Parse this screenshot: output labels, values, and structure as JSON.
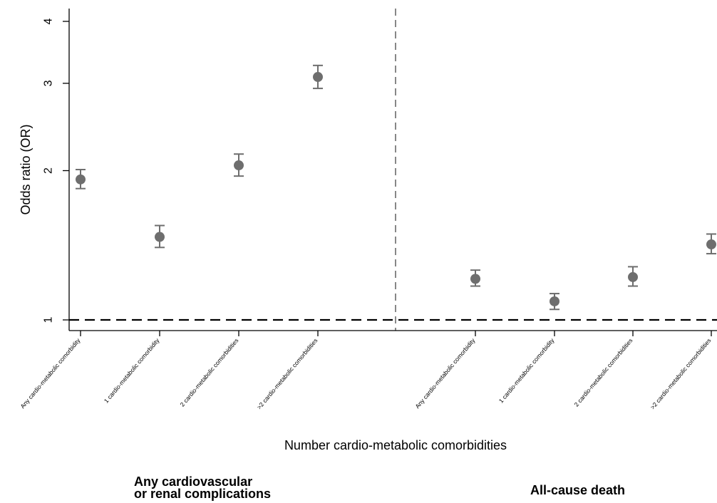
{
  "chart_data": {
    "type": "scatter",
    "subtype": "point-estimate-with-error-bars",
    "ylabel": "Odds ratio (OR)",
    "xlabel": "Number cardio-metabolic comorbidities",
    "yscale": "log",
    "ylim": [
      0.96,
      4.3
    ],
    "yticks": [
      1,
      2,
      3,
      4
    ],
    "reference_line": {
      "y": 1,
      "style": "dashed"
    },
    "group_divider": "dashed-vertical",
    "marker_color": "#6e6e6e",
    "groups": [
      {
        "name_lines": [
          "Any cardiovascular",
          "or renal complications"
        ],
        "categories": [
          "Any cardio-metabolic comorbidity",
          "1 cardio-metabolic comorbidity",
          "2 cardio-metabolic comorbidities",
          ">2 cardio-metabolic comorbidities"
        ],
        "or": [
          1.92,
          1.47,
          2.05,
          3.09
        ],
        "ci_low": [
          1.84,
          1.4,
          1.95,
          2.93
        ],
        "ci_high": [
          2.01,
          1.55,
          2.16,
          3.26
        ]
      },
      {
        "name_lines": [
          "All-cause death"
        ],
        "categories": [
          "Any cardio-metabolic comorbidity",
          "1 cardio-metabolic comorbidity",
          "2 cardio-metabolic comorbidities",
          ">2 cardio-metabolic comorbidities"
        ],
        "or": [
          1.21,
          1.09,
          1.22,
          1.42
        ],
        "ci_low": [
          1.17,
          1.05,
          1.17,
          1.36
        ],
        "ci_high": [
          1.26,
          1.13,
          1.28,
          1.49
        ]
      }
    ]
  }
}
